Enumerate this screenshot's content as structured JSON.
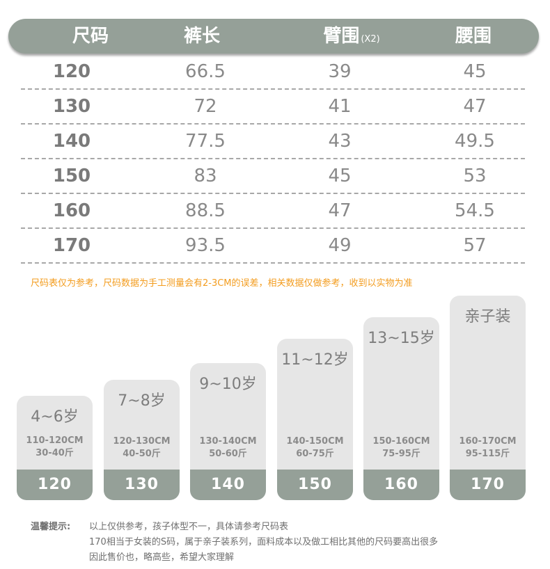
{
  "header": {
    "columns": [
      "尺码",
      "裤长",
      "臂围",
      "腰围"
    ],
    "arm_suffix": "(X2)",
    "colors": {
      "bar": "#95a098",
      "text": "#ffffff"
    }
  },
  "table": {
    "rows": [
      [
        "120",
        "66.5",
        "39",
        "45"
      ],
      [
        "130",
        "72",
        "41",
        "47"
      ],
      [
        "140",
        "77.5",
        "43",
        "49.5"
      ],
      [
        "150",
        "83",
        "45",
        "53"
      ],
      [
        "160",
        "88.5",
        "47",
        "54.5"
      ],
      [
        "170",
        "93.5",
        "49",
        "57"
      ]
    ]
  },
  "note": "尺码表仅为参考，尺码数据为手工测量会有2-3CM的误差，相关数据仅做参考，收到以实物为准",
  "note_color": "#f39c1e",
  "cards": [
    {
      "age": "4~6岁",
      "height": "110-120CM",
      "weight": "30-40斤",
      "size": "120"
    },
    {
      "age": "7~8岁",
      "height": "120-130CM",
      "weight": "40-50斤",
      "size": "130"
    },
    {
      "age": "9~10岁",
      "height": "130-140CM",
      "weight": "50-60斤",
      "size": "140"
    },
    {
      "age": "11~12岁",
      "height": "140-150CM",
      "weight": "60-75斤",
      "size": "150"
    },
    {
      "age": "13~15岁",
      "height": "150-160CM",
      "weight": "75-95斤",
      "size": "160"
    },
    {
      "age": "亲子装",
      "height": "160-170CM",
      "weight": "95-115斤",
      "size": "170"
    }
  ],
  "tips": {
    "title": "温馨提示:",
    "lines": [
      "以上仅供参考，孩子体型不一，具体请参考尺码表",
      "170相当于女装的S码，属于亲子装系列，面料成本以及做工相比其他的尺码要高出很多",
      "因此售价也，略高些，希望大家理解"
    ]
  }
}
